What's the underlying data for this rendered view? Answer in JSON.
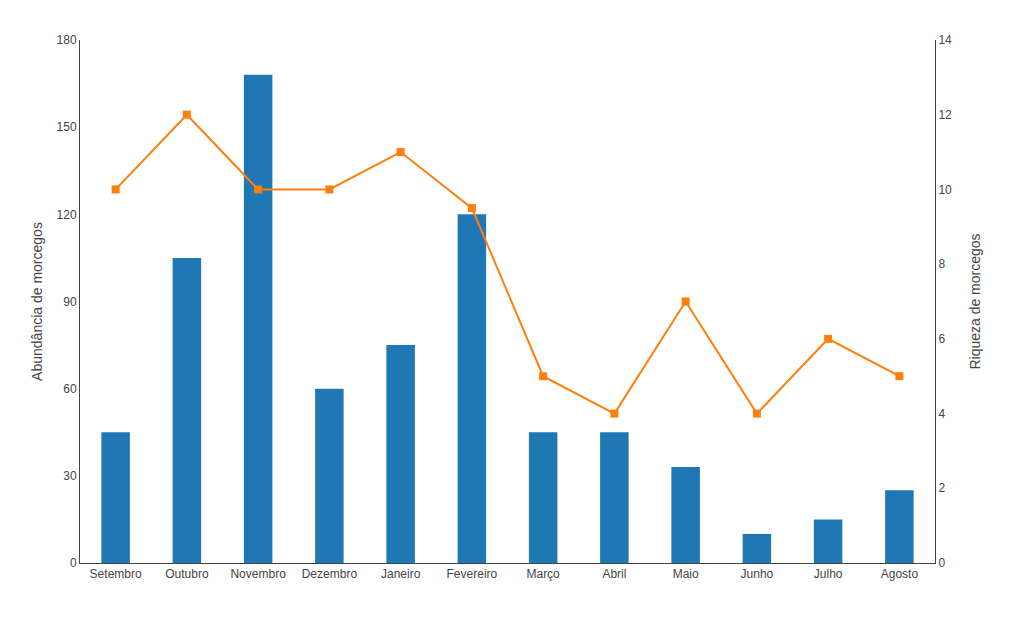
{
  "chart_data": {
    "type": "bar",
    "categories": [
      "Setembro",
      "Outubro",
      "Novembro",
      "Dezembro",
      "Janeiro",
      "Fevereiro",
      "Março",
      "Abril",
      "Maio",
      "Junho",
      "Julho",
      "Agosto"
    ],
    "series": [
      {
        "type": "bar",
        "values": [
          45,
          105,
          168,
          60,
          75,
          120,
          45,
          45,
          33,
          10,
          15,
          25
        ]
      },
      {
        "type": "line",
        "axis": "y2",
        "marker": "square",
        "values": [
          10,
          12,
          10,
          10,
          11,
          9.5,
          5,
          4,
          7,
          4,
          6,
          5
        ]
      }
    ],
    "ylabel": "Abundância de morcegos",
    "y2label": "Riqueza de morcegos",
    "ylim": [
      0,
      180
    ],
    "yticks": [
      0,
      30,
      60,
      90,
      120,
      150,
      180
    ],
    "y2lim": [
      0,
      14
    ],
    "y2ticks": [
      0,
      2,
      4,
      6,
      8,
      10,
      12,
      14
    ],
    "grid": false
  }
}
